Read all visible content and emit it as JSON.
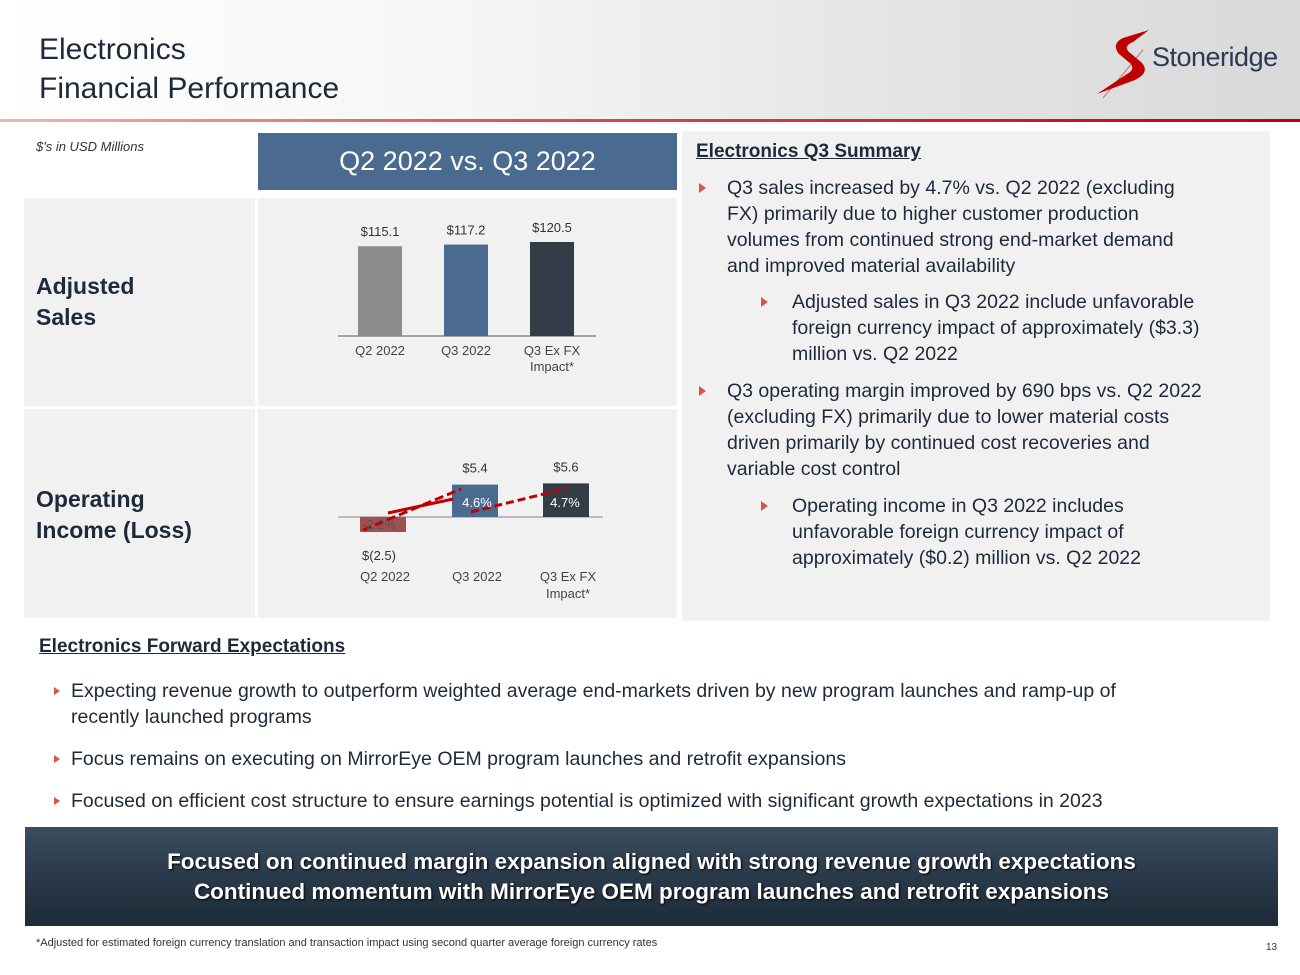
{
  "header": {
    "title_line1": "Electronics",
    "title_line2": "Financial Performance",
    "logo_text": "Stoneridge",
    "brand_color": "#c00000"
  },
  "units_note": "$'s in USD Millions",
  "panel_title": "Q2 2022 vs. Q3 2022",
  "row1_label": [
    "Adjusted",
    "Sales"
  ],
  "row2_label": [
    "Operating",
    "Income (Loss)"
  ],
  "chart_data": [
    {
      "type": "bar",
      "categories": [
        "Q2 2022",
        "Q3 2022",
        "Q3 Ex FX Impact*"
      ],
      "category_lines": [
        [
          "Q2 2022"
        ],
        [
          "Q3 2022"
        ],
        [
          "Q3 Ex FX",
          "Impact*"
        ]
      ],
      "values": [
        115.1,
        117.2,
        120.5
      ],
      "data_labels": [
        "$115.1",
        "$117.2",
        "$120.5"
      ],
      "colors": [
        "#8c8c8c",
        "#4a6a8f",
        "#333d48"
      ],
      "title": "",
      "xlabel": "",
      "ylabel": ""
    },
    {
      "type": "bar",
      "categories": [
        "Q2 2022",
        "Q3 2022",
        "Q3 Ex FX Impact*"
      ],
      "category_lines": [
        [
          "Q2 2022"
        ],
        [
          "Q3 2022"
        ],
        [
          "Q3 Ex FX",
          "Impact*"
        ]
      ],
      "values": [
        -2.5,
        5.4,
        5.6
      ],
      "data_labels": [
        "$(2.5)",
        "$5.4",
        "$5.6"
      ],
      "colors": [
        "#a05050",
        "#4a6a8f",
        "#333d48"
      ],
      "margin_series": {
        "values": [
          -2.2,
          4.6,
          4.7
        ],
        "labels": [
          "-2.2%",
          "4.6%",
          "4.7%"
        ],
        "color": "#c00000"
      },
      "title": "",
      "xlabel": "",
      "ylabel": ""
    }
  ],
  "summary": {
    "title": "Electronics Q3 Summary",
    "b1": [
      "Q3 sales increased by 4.7% vs. Q2 2022 (excluding",
      "FX) primarily due to higher customer production",
      "volumes from continued strong end-market demand",
      "and improved material availability"
    ],
    "b1a": [
      "Adjusted sales in Q3 2022 include unfavorable",
      "foreign currency impact of approximately ($3.3)",
      "million vs. Q2 2022"
    ],
    "b2": [
      "Q3 operating margin improved by 690 bps vs. Q2 2022",
      "(excluding FX) primarily due to lower material costs",
      "driven primarily by continued cost recoveries and",
      "variable cost control"
    ],
    "b2a": [
      "Operating income in Q3 2022 includes",
      "unfavorable foreign currency impact of",
      "approximately ($0.2) million vs. Q2 2022"
    ]
  },
  "forward": {
    "title": "Electronics Forward Expectations",
    "items": [
      [
        "Expecting revenue growth to outperform weighted average end-markets driven by new program launches and ramp-up of",
        "recently launched programs"
      ],
      [
        "Focus remains on executing on MirrorEye OEM program launches and retrofit expansions"
      ],
      [
        "Focused on efficient cost structure to ensure earnings potential is optimized with significant growth expectations in 2023"
      ]
    ]
  },
  "banner": {
    "line1": "Focused on continued margin expansion aligned with strong revenue growth expectations",
    "line2": "Continued momentum with MirrorEye OEM program launches and retrofit expansions"
  },
  "footnote": "*Adjusted for estimated foreign currency translation and transaction impact using second quarter average foreign currency rates",
  "page_number": "13"
}
